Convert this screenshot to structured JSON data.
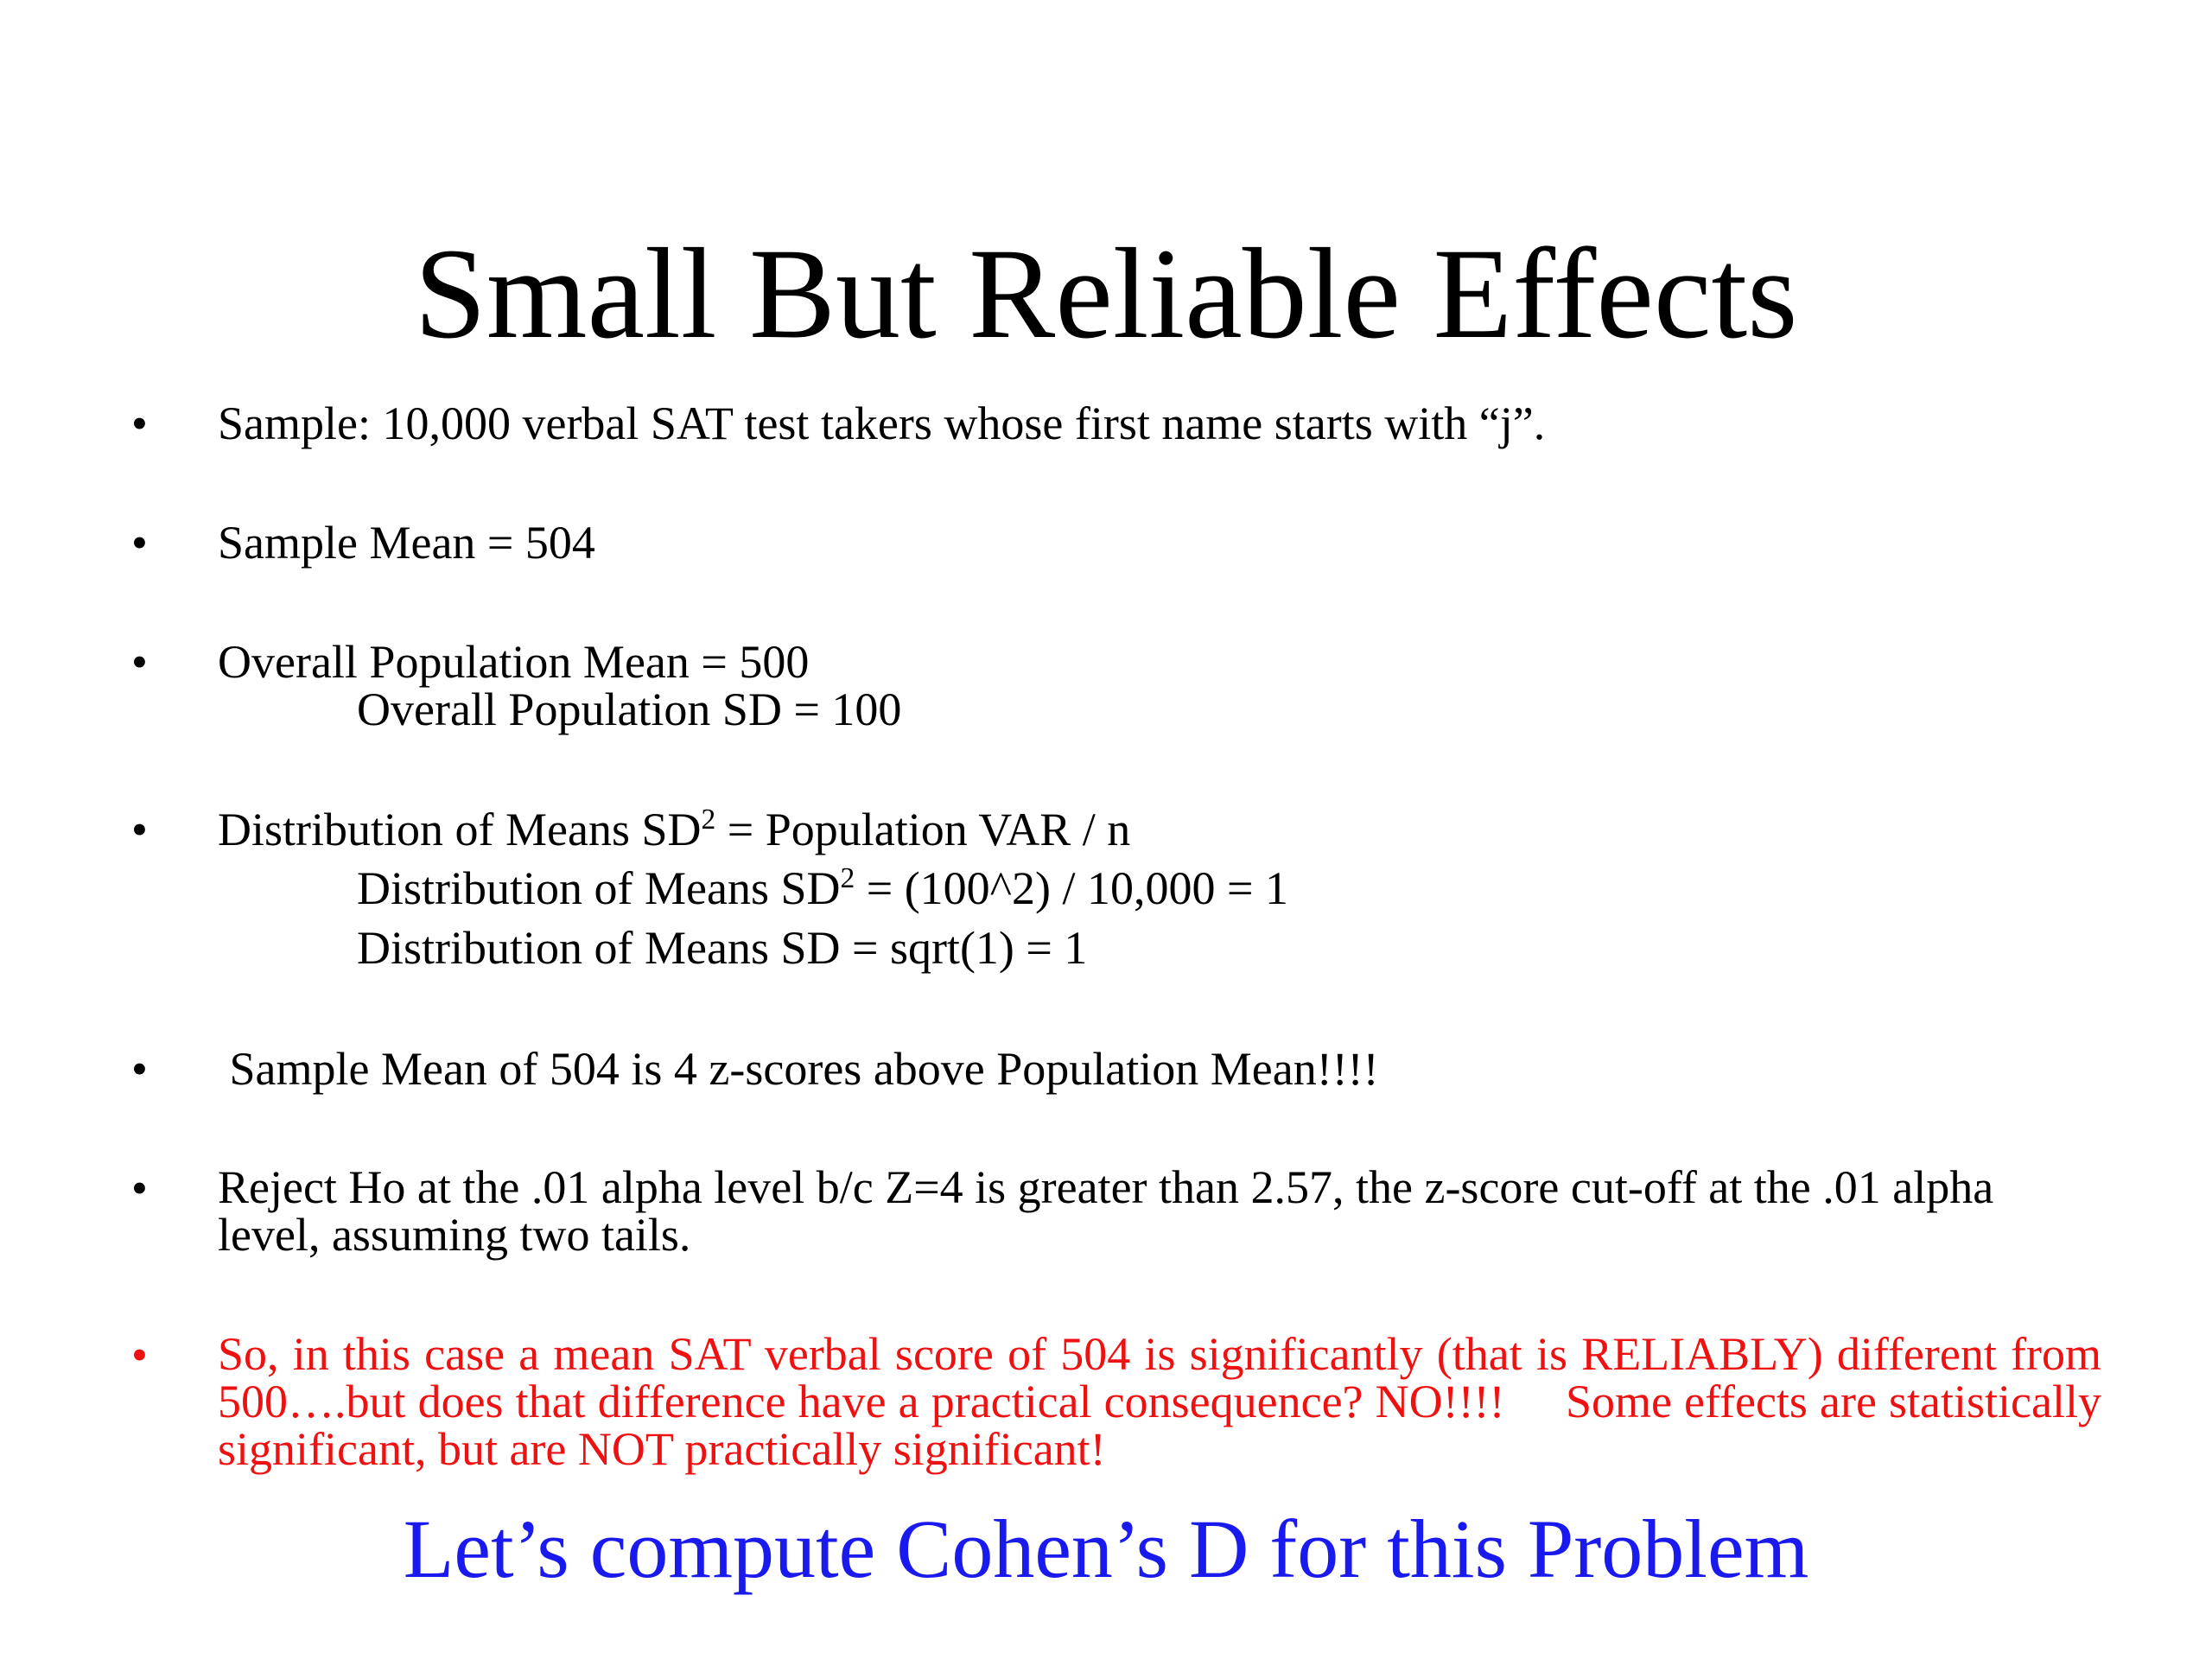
{
  "slide": {
    "title": "Small But Reliable Effects",
    "bullet_symbol": "•",
    "bullets": [
      {
        "text": "Sample: 10,000 verbal SAT test takers whose first name starts with “j”."
      },
      {
        "text": "Sample Mean = 504"
      },
      {
        "text": "Overall Population Mean = 500",
        "sub": [
          "Overall Population SD = 100"
        ]
      },
      {
        "text_pre": "Distribution of Means SD",
        "text_sup": "2",
        "text_post": " = Population VAR / n",
        "sub1_pre": "Distribution of Means SD",
        "sub1_sup": "2",
        "sub1_post": " = (100^2) / 10,000 = 1",
        "sub2": "Distribution of Means SD = sqrt(1) = 1"
      },
      {
        "text": " Sample Mean of 504 is 4 z-scores above Population Mean!!!!"
      },
      {
        "text": "Reject Ho at the .01 alpha level b/c Z=4 is greater than 2.57, the z-score cut-off at the .01 alpha level, assuming two tails."
      },
      {
        "text": "So, in this case a mean SAT verbal score of 504 is significantly (that is RELIABLY) different from 500….but does that difference have a practical consequence? NO!!!!     Some effects are statistically significant, but are NOT practically significant!"
      }
    ],
    "closing": "Let’s compute Cohen’s D for this Problem",
    "colors": {
      "text": "#000000",
      "emphasis": "#ee1111",
      "closing": "#1a1aee",
      "background": "#ffffff"
    }
  }
}
